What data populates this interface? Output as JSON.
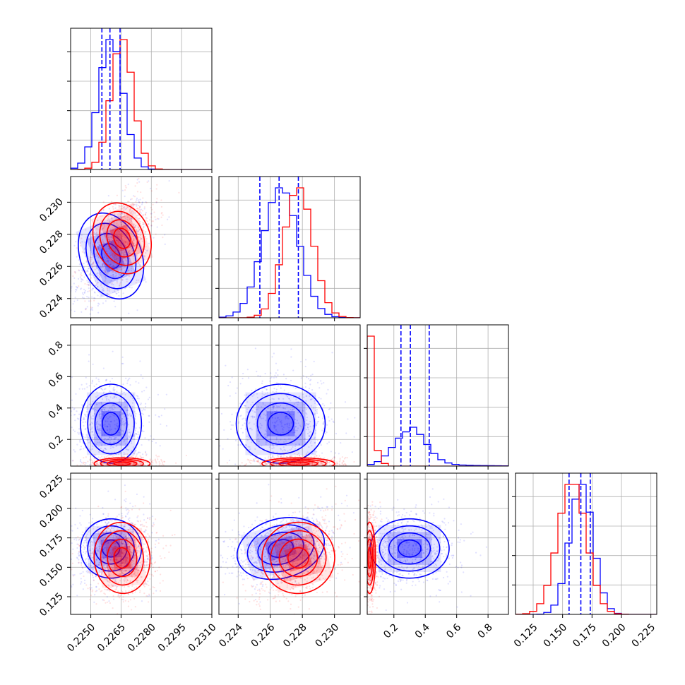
{
  "chart_data": {
    "type": "corner",
    "grid": true,
    "legend": "none",
    "parameters": [
      {
        "range": [
          0.224,
          0.231
        ],
        "ticks": [
          0.225,
          0.2265,
          0.228,
          0.2295,
          0.231
        ],
        "tick_labels": [
          "0.2250",
          "0.2265",
          "0.2280",
          "0.2295",
          "0.2310"
        ]
      },
      {
        "range": [
          0.2228,
          0.2316
        ],
        "ticks": [
          0.224,
          0.226,
          0.228,
          0.23
        ],
        "tick_labels": [
          "0.224",
          "0.226",
          "0.228",
          "0.230"
        ]
      },
      {
        "range": [
          0.03,
          0.93
        ],
        "ticks": [
          0.2,
          0.4,
          0.6,
          0.8
        ],
        "tick_labels": [
          "0.2",
          "0.4",
          "0.6",
          "0.8"
        ]
      },
      {
        "range": [
          0.11,
          0.23
        ],
        "ticks": [
          0.125,
          0.15,
          0.175,
          0.2,
          0.225
        ],
        "tick_labels": [
          "0.125",
          "0.150",
          "0.175",
          "0.200",
          "0.225"
        ]
      }
    ],
    "series": [
      {
        "color": "#0000ff",
        "means": [
          0.226,
          0.22665,
          0.3,
          0.166
        ],
        "sigmas": [
          0.0006,
          0.0011,
          0.1,
          0.01
        ],
        "quantiles": [
          [
            0.22555,
            0.22595,
            0.22645
          ],
          [
            0.22535,
            0.22655,
            0.22775
          ],
          [
            0.245,
            0.305,
            0.425
          ],
          [
            0.1555,
            0.1655,
            0.1735
          ]
        ]
      },
      {
        "color": "#ff0000",
        "means": [
          0.22655,
          0.22775,
          0.045,
          0.158
        ],
        "sigmas": [
          0.00055,
          0.0009,
          0.015,
          0.012
        ],
        "quantiles": []
      }
    ],
    "quantile_line_color": "#0000ff"
  }
}
